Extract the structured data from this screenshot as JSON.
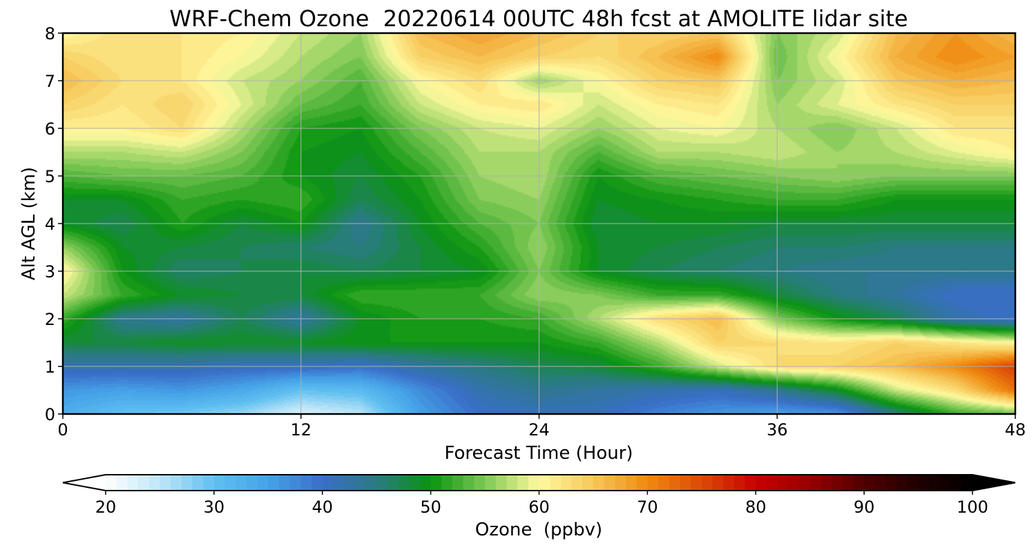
{
  "chart_data": {
    "type": "heatmap",
    "title": "WRF-Chem Ozone  20220614 00UTC 48h fcst at AMOLITE lidar site",
    "xlabel": "Forecast Time (Hour)",
    "ylabel": "Alt AGL (km)",
    "xlim": [
      0,
      48
    ],
    "ylim": [
      0,
      8
    ],
    "x_ticks": [
      0,
      12,
      24,
      36,
      48
    ],
    "y_ticks": [
      0,
      1,
      2,
      3,
      4,
      5,
      6,
      7,
      8
    ],
    "grid": true,
    "x": [
      0,
      3,
      6,
      9,
      12,
      15,
      18,
      21,
      24,
      27,
      30,
      33,
      36,
      39,
      42,
      45,
      48
    ],
    "y": [
      0,
      0.5,
      1,
      1.5,
      2,
      2.5,
      3,
      3.5,
      4,
      4.5,
      5,
      5.5,
      6,
      6.5,
      7,
      7.5,
      8
    ],
    "z": [
      [
        33,
        30,
        29,
        27,
        23,
        25,
        35,
        40,
        41,
        41,
        38,
        36,
        35,
        36,
        45,
        52,
        54
      ],
      [
        36,
        35,
        36,
        34,
        30,
        31,
        37,
        42,
        44,
        43,
        42,
        41,
        44,
        49,
        58,
        63,
        72
      ],
      [
        42,
        42,
        42,
        41,
        41,
        40,
        43,
        45,
        47,
        48,
        52,
        58,
        63,
        64,
        66,
        70,
        76
      ],
      [
        48,
        48,
        49,
        49,
        49,
        50,
        50,
        50,
        50,
        52,
        57,
        64,
        63,
        62,
        64,
        62,
        60
      ],
      [
        52,
        44,
        43,
        47,
        43,
        49,
        51,
        51,
        52,
        57,
        63,
        66,
        55,
        50,
        47,
        42,
        40
      ],
      [
        58,
        52,
        49,
        48,
        48,
        52,
        52,
        52,
        56,
        55,
        52,
        52,
        48,
        45,
        43,
        40,
        40
      ],
      [
        61,
        50,
        46,
        47,
        48,
        47,
        48,
        49,
        55,
        49,
        47,
        46,
        45,
        44,
        44,
        44,
        44
      ],
      [
        56,
        49,
        48,
        47,
        46,
        45,
        48,
        51,
        56,
        49,
        48,
        47,
        46,
        46,
        45,
        45,
        45
      ],
      [
        49,
        47,
        51,
        48,
        50,
        44,
        49,
        53,
        55,
        48,
        49,
        49,
        48,
        48,
        48,
        48,
        48
      ],
      [
        49,
        49,
        52,
        51,
        52,
        47,
        50,
        55,
        56,
        49,
        50,
        51,
        52,
        52,
        50,
        50,
        50
      ],
      [
        53,
        54,
        54,
        53,
        50,
        48,
        51,
        56,
        57,
        50,
        53,
        54,
        55,
        56,
        55,
        55,
        55
      ],
      [
        57,
        57,
        58,
        55,
        50,
        49,
        53,
        57,
        57,
        53,
        57,
        57,
        58,
        56,
        57,
        59,
        61
      ],
      [
        61,
        61,
        63,
        57,
        51,
        50,
        55,
        58,
        59,
        56,
        59,
        60,
        57,
        55,
        58,
        62,
        62
      ],
      [
        64,
        62,
        64,
        59,
        54,
        52,
        58,
        61,
        62,
        58,
        61,
        62,
        56,
        59,
        62,
        64,
        64
      ],
      [
        66,
        63,
        62,
        58,
        56,
        53,
        60,
        63,
        56,
        60,
        64,
        65,
        55,
        58,
        65,
        67,
        66
      ],
      [
        64,
        62,
        62,
        60,
        57,
        55,
        64,
        66,
        64,
        63,
        66,
        70,
        54,
        60,
        67,
        70,
        68
      ],
      [
        60,
        63,
        62,
        61,
        58,
        56,
        66,
        68,
        66,
        64,
        64,
        65,
        55,
        58,
        66,
        69,
        66
      ]
    ],
    "colorbar": {
      "label": "Ozone  (ppbv)",
      "min": 20,
      "max": 100,
      "extend": "both",
      "ticks": [
        20,
        30,
        40,
        50,
        60,
        70,
        80,
        90,
        100
      ],
      "stops": [
        [
          20,
          "#ffffff"
        ],
        [
          25,
          "#bfe6f8"
        ],
        [
          30,
          "#60c0f0"
        ],
        [
          35,
          "#45a2e8"
        ],
        [
          40,
          "#3a6ec8"
        ],
        [
          45,
          "#2a7a82"
        ],
        [
          50,
          "#0a9410"
        ],
        [
          55,
          "#7ec854"
        ],
        [
          60,
          "#fffaa0"
        ],
        [
          65,
          "#f7c85a"
        ],
        [
          70,
          "#ef8a10"
        ],
        [
          75,
          "#dc4a08"
        ],
        [
          80,
          "#c80000"
        ],
        [
          85,
          "#980000"
        ],
        [
          90,
          "#500000"
        ],
        [
          95,
          "#200000"
        ],
        [
          100,
          "#000000"
        ]
      ]
    }
  }
}
